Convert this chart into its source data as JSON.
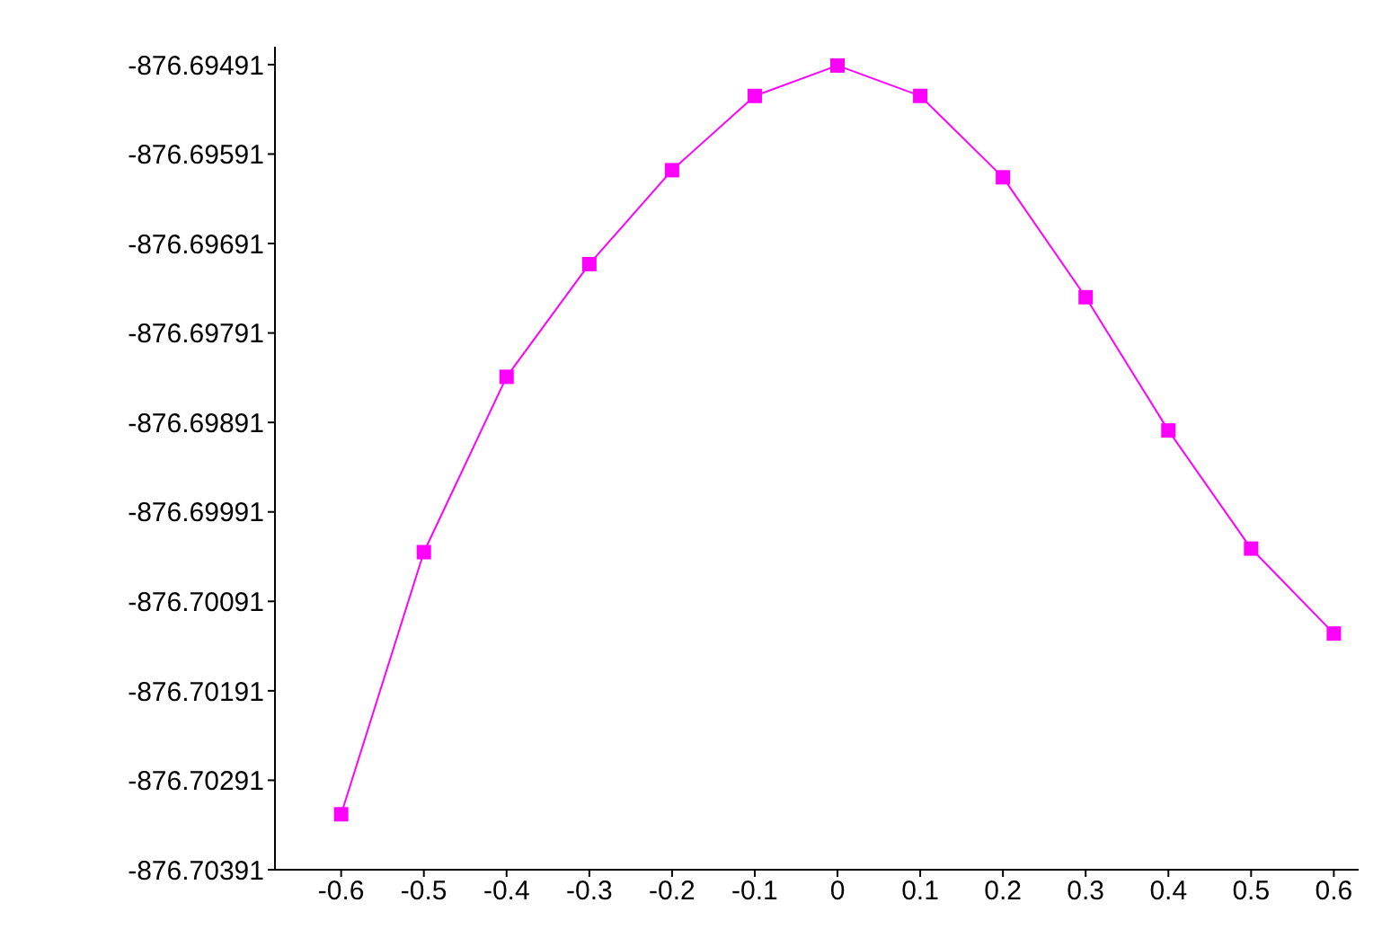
{
  "chart_data": {
    "type": "line",
    "x": [
      -0.6,
      -0.5,
      -0.4,
      -0.3,
      -0.2,
      -0.1,
      0,
      0.1,
      0.2,
      0.3,
      0.4,
      0.5,
      0.6
    ],
    "series": [
      {
        "color": "#ff00ff",
        "values": [
          -876.70329,
          -876.70036,
          -876.6984,
          -876.69714,
          -876.69609,
          -876.69526,
          -876.69492,
          -876.69526,
          -876.69617,
          -876.69751,
          -876.699,
          -876.70032,
          -876.70127
        ]
      }
    ],
    "xlim": [
      -0.68,
      0.63
    ],
    "xticks": [
      -0.6,
      -0.5,
      -0.4,
      -0.3,
      -0.2,
      -0.1,
      0,
      0.1,
      0.2,
      0.3,
      0.4,
      0.5,
      0.6
    ],
    "ylim": [
      -876.70391,
      -876.69471
    ],
    "yticks": [
      -876.70391,
      -876.70291,
      -876.70191,
      -876.70091,
      -876.69991,
      -876.69891,
      -876.69791,
      -876.69691,
      -876.69591,
      -876.69491
    ],
    "grid": false,
    "legend": false,
    "marker": "square",
    "line_style": "solid"
  }
}
